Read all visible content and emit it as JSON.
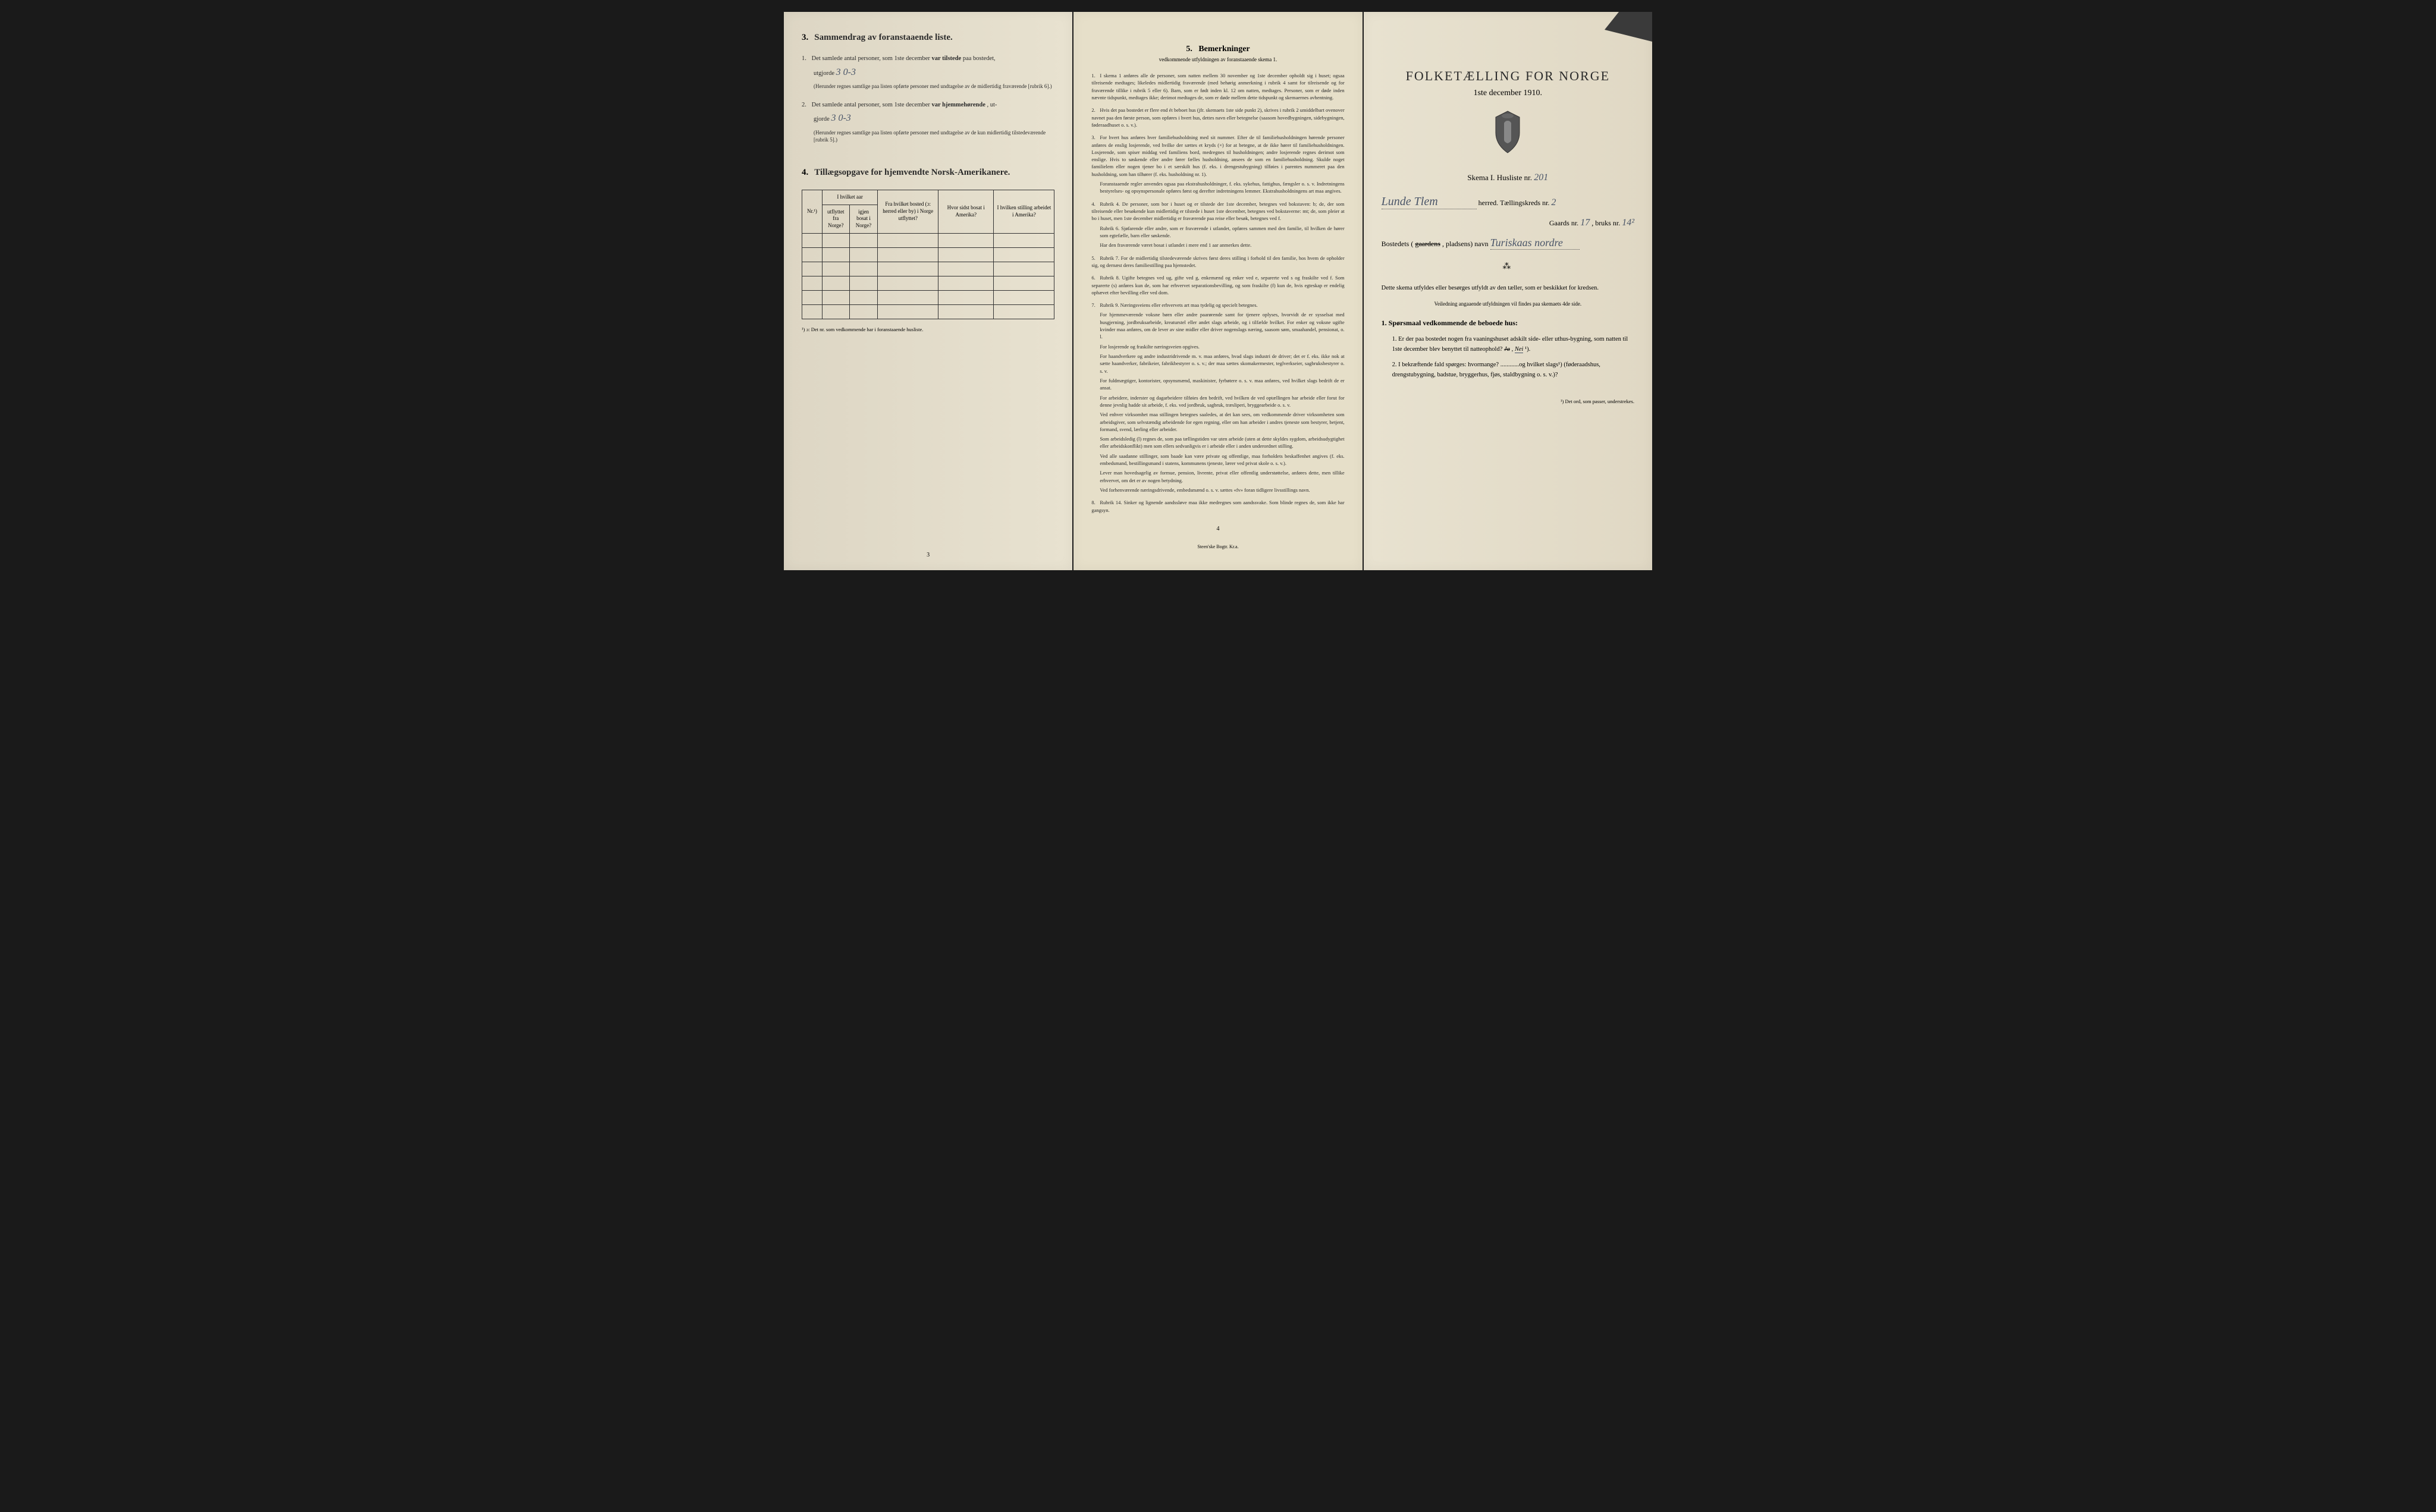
{
  "pageLeft": {
    "section3": {
      "number": "3.",
      "title": "Sammendrag av foranstaaende liste.",
      "item1": {
        "num": "1.",
        "text_a": "Det samlede antal personer, som 1ste december ",
        "bold_a": "var tilstede",
        "text_b": " paa bostedet,",
        "line2": "utgjorde ",
        "handwritten": "3  0-3",
        "note": "(Herunder regnes samtlige paa listen opførte personer med undtagelse av de midlertidig fraværende [rubrik 6].)"
      },
      "item2": {
        "num": "2.",
        "text_a": "Det samlede antal personer, som 1ste december ",
        "bold_a": "var hjemmehørende",
        "text_b": ", ut-",
        "line2": "gjorde ",
        "handwritten": "3  0-3",
        "note": "(Herunder regnes samtlige paa listen opførte personer med undtagelse av de kun midlertidig tilstedeværende [rubrik 5].)"
      }
    },
    "section4": {
      "number": "4.",
      "title": "Tillægsopgave for hjemvendte Norsk-Amerikanere.",
      "table": {
        "headers": {
          "col1": "Nr.¹)",
          "col2_group": "I hvilket aar",
          "col2a": "utflyttet fra Norge?",
          "col2b": "igjen bosat i Norge?",
          "col3": "Fra hvilket bosted (ɔ: herred eller by) i Norge utflyttet?",
          "col4": "Hvor sidst bosat i Amerika?",
          "col5": "I hvilken stilling arbeidet i Amerika?"
        },
        "rows": 6
      },
      "footnote": "¹) ɔ: Det nr. som vedkommende har i foranstaaende husliste."
    },
    "pageNum": "3"
  },
  "pageCenter": {
    "title_num": "5.",
    "title": "Bemerkninger",
    "subtitle": "vedkommende utfyldningen av foranstaaende skema 1.",
    "remarks": [
      {
        "num": "1.",
        "text": "I skema 1 anføres alle de personer, som natten mellem 30 november og 1ste december opholdt sig i huset; ogsaa tilreisende medtages; likeledes midlertidig fraværende (med behørig anmerkning i rubrik 4 samt for tilreisende og for fraværende tillike i rubrik 5 eller 6). Barn, som er født inden kl. 12 om natten, medtages. Personer, som er døde inden nævnte tidspunkt, medtages ikke; derimot medtages de, som er døde mellem dette tidspunkt og skemaernes avhentning."
      },
      {
        "num": "2.",
        "text": "Hvis det paa bostedet er flere end ét beboet hus (jfr. skemaets 1ste side punkt 2), skrives i rubrik 2 umiddelbart ovenover navnet paa den første person, som opføres i hvert hus, dettes navn eller betegnelse (saasom hovedbygningen, sidebygningen, føderaadhuset o. s. v.)."
      },
      {
        "num": "3.",
        "text": "For hvert hus anføres hver familiehusholdning med sit nummer. Efter de til familiehusholdningen hørende personer anføres de enslig losjerende, ved hvilke der sættes et kryds (×) for at betegne, at de ikke hører til familiehusholdningen. Losjerende, som spiser middag ved familiens bord, medregnes til husholdningen; andre losjerende regnes derimot som enslige. Hvis to søskende eller andre fører fælles husholdning, ansees de som en familiehusholdning. Skulde noget familielem eller nogen tjener bo i et særskilt hus (f. eks. i drengestubygning) tilføies i parentes nummeret paa den husholdning, som han tilhører (f. eks. husholdning nr. 1).",
        "para2": "Foranstaaende regler anvendes ogsaa paa ekstrahusholdninger, f. eks. sykehus, fattighus, fængsler o. s. v. Indretningens bestyrelses- og opsynspersonale opføres først og derefter indretningens lemmer. Ekstrahusholdningens art maa angives."
      },
      {
        "num": "4.",
        "text": "Rubrik 4. De personer, som bor i huset og er tilstede der 1ste december, betegnes ved bokstaven: b; de, der som tilreisende eller besøkende kun midlertidig er tilstede i huset 1ste december, betegnes ved bokstaverne: mt; de, som pleier at bo i huset, men 1ste december midlertidig er fraværende paa reise eller besøk, betegnes ved f.",
        "para2": "Rubrik 6. Sjøfarende eller andre, som er fraværende i utlandet, opføres sammen med den familie, til hvilken de hører som egtefælle, barn eller søskende.",
        "para3": "Har den fraværende været bosat i utlandet i mere end 1 aar anmerkes dette."
      },
      {
        "num": "5.",
        "text": "Rubrik 7. For de midlertidig tilstedeværende skrives først deres stilling i forhold til den familie, hos hvem de opholder sig, og dernæst deres familiestilling paa hjemstedet."
      },
      {
        "num": "6.",
        "text": "Rubrik 8. Ugifte betegnes ved ug, gifte ved g, enkemænd og enker ved e, separerte ved s og fraskilte ved f. Som separerte (s) anføres kun de, som har erhvervet separationsbevilling, og som fraskilte (f) kun de, hvis egteskap er endelig ophævet efter bevilling eller ved dom."
      },
      {
        "num": "7.",
        "text": "Rubrik 9. Næringsveiens eller erhvervets art maa tydelig og specielt betegnes.",
        "para2": "For hjemmeværende voksne børn eller andre paarørende samt for tjenere oplyses, hvorvidt de er sysselsat med husgjerning, jordbruksarbeide, kreaturstel eller andet slags arbeide, og i tilfælde hvilket. For enker og voksne ugifte kvinder maa anføres, om de lever av sine midler eller driver nogenslags næring, saasom søm, smaahandel, pensionat, o. l.",
        "para3": "For losjerende og fraskilte næringsveien opgives.",
        "para4": "For haandverkere og andre industridrivende m. v. maa anføres, hvad slags industri de driver; det er f. eks. ikke nok at sætte haandverker, fabrikeier, fabrikbestyrer o. s. v.; der maa sættes skomakermester, teglverkseier, sagbruksbestyrer o. s. v.",
        "para5": "For fuldmægtiger, kontorister, opsynsmænd, maskinister, fyrbøtere o. s. v. maa anføres, ved hvilket slags bedrift de er ansat.",
        "para6": "For arbeidere, inderster og dagarbeidere tilføies den bedrift, ved hvilken de ved optællingen har arbeide eller forut for denne jevnlig hadde sit arbeide, f. eks. ved jordbruk, sagbruk, træsliperi, bryggearbeide o. s. v.",
        "para7": "Ved enhver virksomhet maa stillingen betegnes saaledes, at det kan sees, om vedkommende driver virksomheten som arbeidsgiver, som selvstændig arbeidende for egen regning, eller om han arbeider i andres tjeneste som bestyrer, betjent, formand, svend, lærling eller arbeider.",
        "para8": "Som arbeidsledig (l) regnes de, som paa tællingstiden var uten arbeide (uten at dette skyldes sygdom, arbeidsudygtighet eller arbeidskonflikt) men som ellers sedvanligvis er i arbeide eller i anden underordnet stilling.",
        "para9": "Ved alle saadanne stillinger, som baade kan være private og offentlige, maa forholdets beskaffenhet angives (f. eks. embedsmand, bestillingsmand i statens, kommunens tjeneste, lærer ved privat skole o. s. v.).",
        "para10": "Lever man hovedsagelig av formue, pension, livrente, privat eller offentlig understøttelse, anføres dette, men tillike erhvervet, om det er av nogen betydning.",
        "para11": "Ved forhenværende næringsdrivende, embedsmænd o. s. v. sættes «fv» foran tidligere livsstillings navn."
      },
      {
        "num": "8.",
        "text": "Rubrik 14. Sinker og lignende aandssløve maa ikke medregnes som aandssvake. Som blinde regnes de, som ikke har gangsyn."
      }
    ],
    "pageNum": "4",
    "printer": "Steen'ske Bogtr.  Kr.a."
  },
  "pageRight": {
    "mainTitle": "FOLKETÆLLING FOR NORGE",
    "date": "1ste december 1910.",
    "skemaLine": {
      "prefix": "Skema I.  Husliste nr.",
      "value": "201"
    },
    "herredLine": {
      "handwritten": "Lunde Tlem",
      "suffix": "herred.  Tællingskreds nr.",
      "kredsValue": "2"
    },
    "gaardsLine": {
      "prefix": "Gaards nr.",
      "gaardsValue": "17",
      "bruksPrefix": ", bruks nr.",
      "bruksValue": "14²"
    },
    "bostedLine": {
      "prefix": "Bostedets (",
      "struck": "gaardens",
      "mid": ", pladsens) navn",
      "value": "Turiskaas nordre"
    },
    "instruction": "Dette skema utfyldes eller besørges utfyldt av den tæller, som er beskikket for kredsen.",
    "subInstruction": "Veiledning angaaende utfyldningen vil findes paa skemaets 4de side.",
    "questionsTitle": "1. Spørsmaal vedkommende de beboede hus:",
    "questions": [
      {
        "num": "1.",
        "text_a": "Er der paa bostedet nogen fra vaaningshuset adskilt side- eller uthus-bygning, som natten til 1ste december blev benyttet til natteophold?  ",
        "option_struck": "Ja",
        "sep": ",  ",
        "option_chosen": "Nei",
        "footnote_mark": "¹).",
        "rest": ""
      },
      {
        "num": "2.",
        "text": "I bekræftende fald spørges: hvormange? ............og hvilket slags¹) (føderaadshus, drengstubygning, badstue, bryggerhus, fjøs, staldbygning o. s. v.)?"
      }
    ],
    "footnote": "¹) Det ord, som passer, understrekes."
  }
}
